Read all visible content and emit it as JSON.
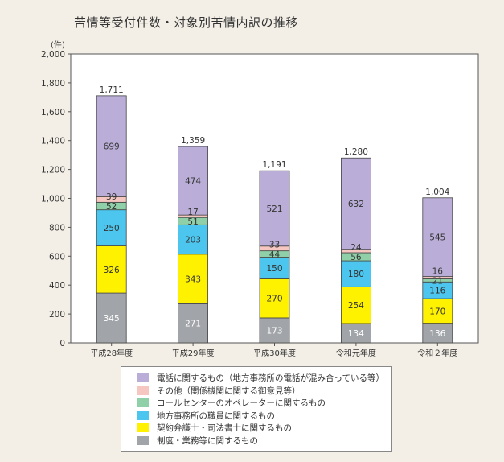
{
  "chart_data": {
    "type": "stacked-bar",
    "title": "苦情等受付件数・対象別苦情内訳の推移",
    "ylabel": "(件)",
    "ylim": [
      0,
      2000
    ],
    "yticks": [
      "0",
      "200",
      "400",
      "600",
      "800",
      "1,000",
      "1,200",
      "1,400",
      "1,600",
      "1,800",
      "2,000"
    ],
    "categories": [
      "平成28年度",
      "平成29年度",
      "平成30年度",
      "令和元年度",
      "令和２年度"
    ],
    "totals": [
      "1,711",
      "1,359",
      "1,191",
      "1,280",
      "1,004"
    ],
    "grid": false,
    "legend_position": "bottom",
    "series": [
      {
        "name": "制度・業務等に関するもの",
        "color": "#a1a4a9",
        "values": [
          345,
          271,
          173,
          134,
          136
        ]
      },
      {
        "name": "契約弁護士・司法書士に関するもの",
        "color": "#fff200",
        "values": [
          326,
          343,
          270,
          254,
          170
        ]
      },
      {
        "name": "地方事務所の職員に関するもの",
        "color": "#4cc6ee",
        "values": [
          250,
          203,
          150,
          180,
          116
        ]
      },
      {
        "name": "コールセンターのオペレーターに関するもの",
        "color": "#8fd0a9",
        "values": [
          52,
          51,
          44,
          56,
          21
        ]
      },
      {
        "name": "その他（関係機関に関する御意見等）",
        "color": "#f6c7c1",
        "values": [
          39,
          17,
          33,
          24,
          16
        ]
      },
      {
        "name": "電話に関するもの（地方事務所の電話が混み合っている等）",
        "color": "#baaed8",
        "values": [
          699,
          474,
          521,
          632,
          545
        ]
      }
    ]
  }
}
